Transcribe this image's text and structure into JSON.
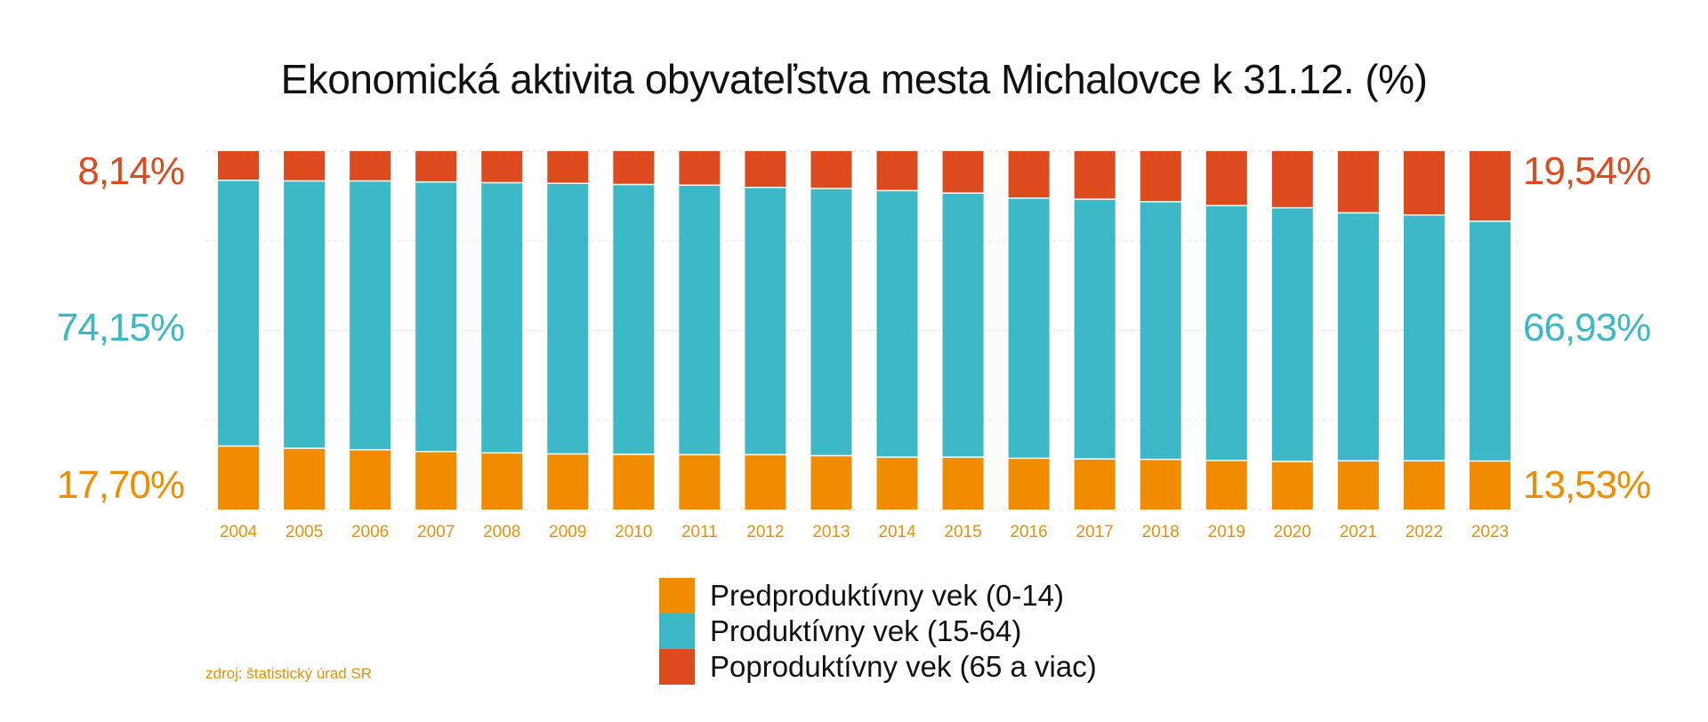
{
  "chart_data": {
    "type": "bar",
    "stacked": true,
    "title": "Ekonomická aktivita obyvateľstva mesta Michalovce k 31.12. (%)",
    "categories": [
      "2004",
      "2005",
      "2006",
      "2007",
      "2008",
      "2009",
      "2010",
      "2011",
      "2012",
      "2013",
      "2014",
      "2015",
      "2016",
      "2017",
      "2018",
      "2019",
      "2020",
      "2021",
      "2022",
      "2023"
    ],
    "ylim": [
      0,
      100
    ],
    "grid": true,
    "legend_position": "bottom-center",
    "series": [
      {
        "name": "Predproduktívny vek (0-14)",
        "color": "#F18C00",
        "values": [
          17.7,
          17.1,
          16.7,
          16.2,
          15.8,
          15.5,
          15.4,
          15.3,
          15.3,
          15.0,
          14.6,
          14.6,
          14.3,
          14.1,
          14.0,
          13.7,
          13.4,
          13.6,
          13.6,
          13.53
        ]
      },
      {
        "name": "Produktívny vek (15-64)",
        "color": "#3DB8C6",
        "values": [
          74.15,
          74.6,
          75.0,
          75.2,
          75.4,
          75.5,
          75.3,
          75.2,
          74.6,
          74.6,
          74.4,
          73.7,
          72.6,
          72.5,
          71.9,
          71.1,
          70.8,
          69.2,
          68.6,
          66.93
        ]
      },
      {
        "name": "Poproduktívny vek (65 a viac)",
        "color": "#DD4A1E",
        "values": [
          8.14,
          8.3,
          8.3,
          8.6,
          8.8,
          9.0,
          9.3,
          9.5,
          10.1,
          10.4,
          11.0,
          11.7,
          13.1,
          13.4,
          14.1,
          15.2,
          15.8,
          17.2,
          17.8,
          19.54
        ]
      }
    ],
    "edge_labels": {
      "left": [
        "8,14%",
        "74,15%",
        "17,70%"
      ],
      "right": [
        "19,54%",
        "66,93%",
        "13,53%"
      ]
    },
    "source": "zdroj: štatistický úrad SR"
  }
}
